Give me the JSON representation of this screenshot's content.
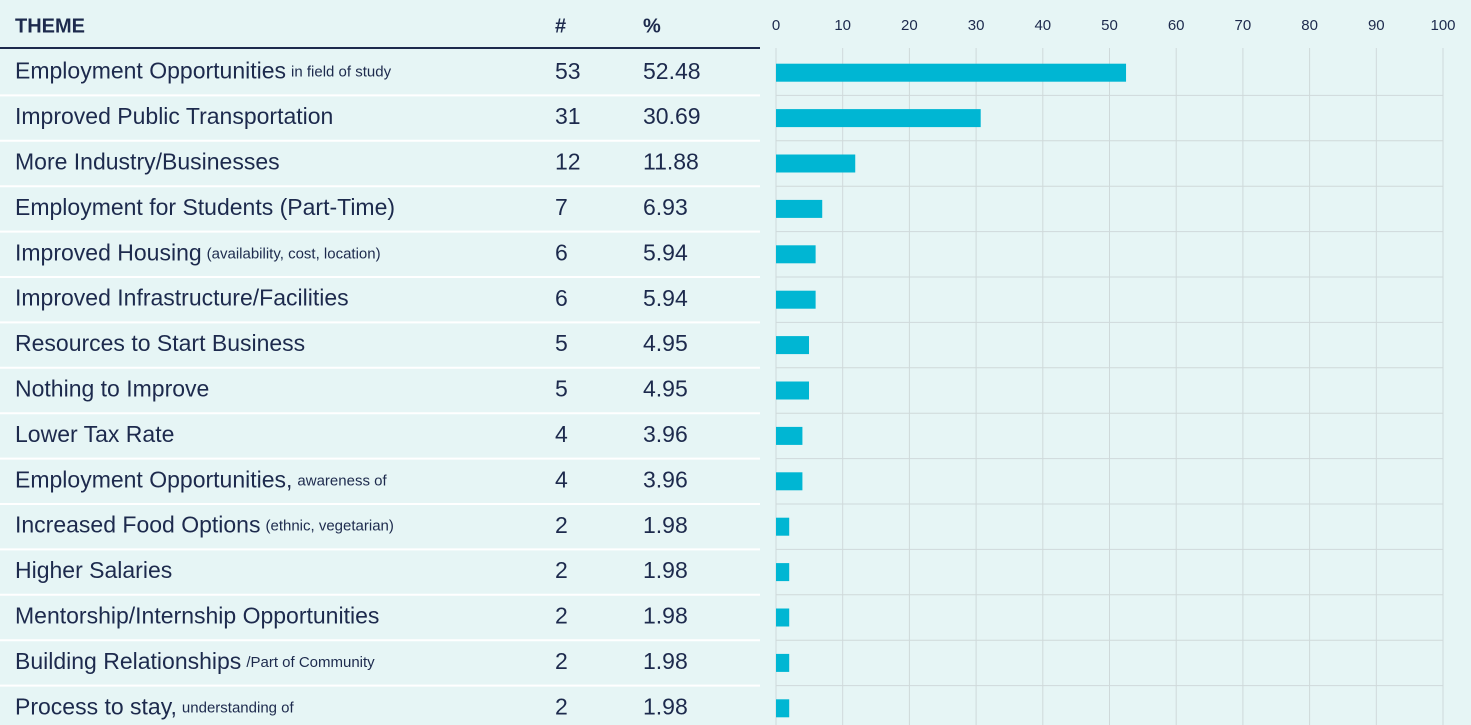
{
  "chart_data": {
    "type": "bar",
    "orientation": "horizontal",
    "columns": [
      "THEME",
      "#",
      "%"
    ],
    "rows": [
      {
        "theme": "Employment Opportunities",
        "note": "in field of study",
        "count": 53,
        "percent": 52.48
      },
      {
        "theme": "Improved Public Transportation",
        "count": 31,
        "percent": 30.69
      },
      {
        "theme": "More Industry/Businesses",
        "count": 12,
        "percent": 11.88
      },
      {
        "theme": "Employment for Students (Part-Time)",
        "count": 7,
        "percent": 6.93
      },
      {
        "theme": "Improved Housing",
        "note": "(availability, cost, location)",
        "count": 6,
        "percent": 5.94
      },
      {
        "theme": "Improved Infrastructure/Facilities",
        "count": 6,
        "percent": 5.94
      },
      {
        "theme": "Resources to Start Business",
        "count": 5,
        "percent": 4.95
      },
      {
        "theme": "Nothing to Improve",
        "count": 5,
        "percent": 4.95
      },
      {
        "theme": "Lower Tax Rate",
        "count": 4,
        "percent": 3.96
      },
      {
        "theme": "Employment Opportunities,",
        "note": "awareness of",
        "count": 4,
        "percent": 3.96
      },
      {
        "theme": "Increased Food Options",
        "note": "(ethnic, vegetarian)",
        "count": 2,
        "percent": 1.98
      },
      {
        "theme": "Higher Salaries",
        "count": 2,
        "percent": 1.98
      },
      {
        "theme": "Mentorship/Internship Opportunities",
        "count": 2,
        "percent": 1.98
      },
      {
        "theme": "Building Relationships",
        "note": "/Part of Community",
        "count": 2,
        "percent": 1.98
      },
      {
        "theme": "Process to stay,",
        "note": "understanding of",
        "count": 2,
        "percent": 1.98
      }
    ],
    "xlim": [
      0,
      100
    ],
    "xticks": [
      0,
      10,
      20,
      30,
      40,
      50,
      60,
      70,
      80,
      90,
      100
    ],
    "color": "#00b6d3",
    "grid": true
  }
}
